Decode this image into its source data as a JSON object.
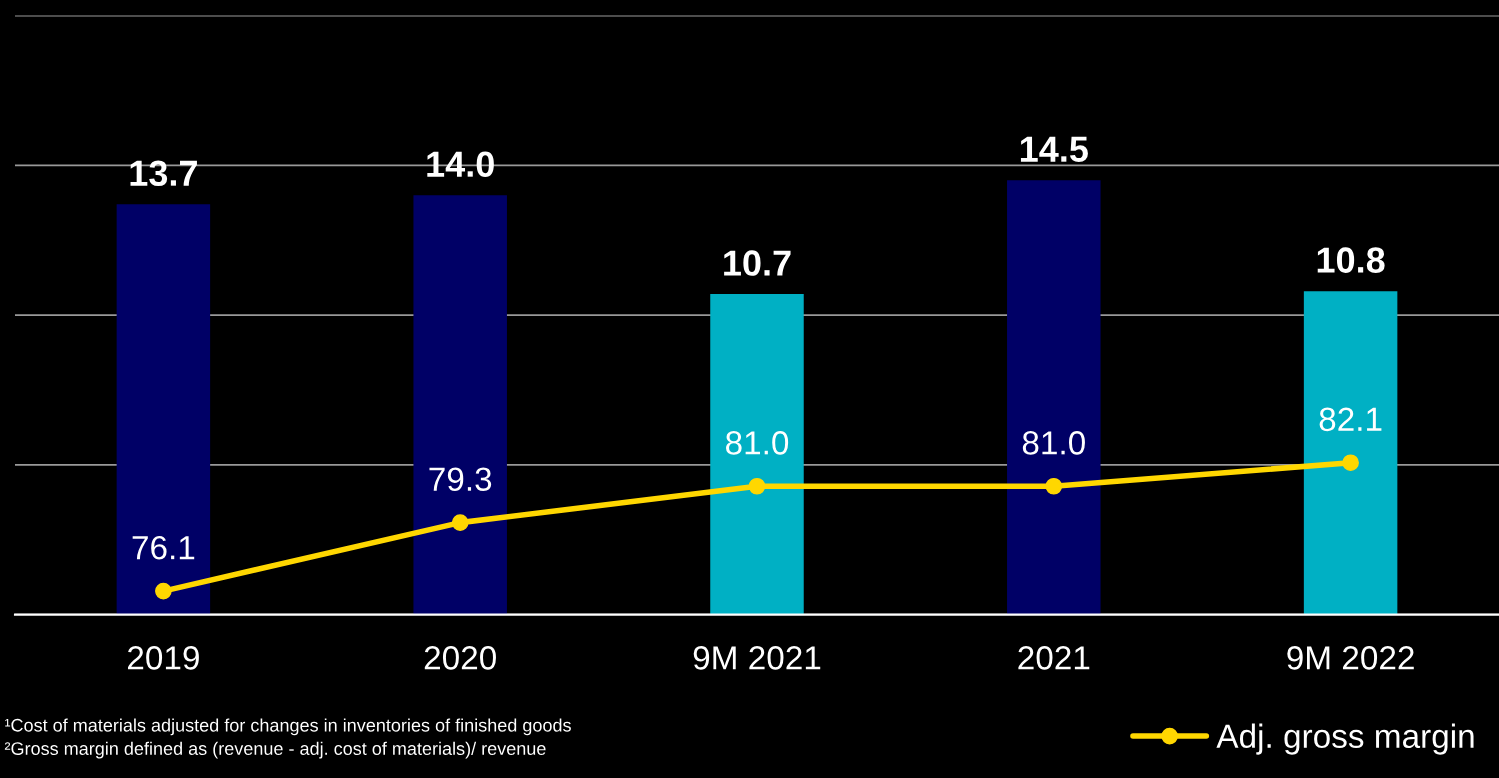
{
  "chart_data": {
    "type": "bar",
    "categories": [
      "2019",
      "2020",
      "9M 2021",
      "2021",
      "9M 2022"
    ],
    "series": [
      {
        "values": [
          13.7,
          14.0,
          10.7,
          14.5,
          10.8
        ],
        "value_labels": [
          "13.7",
          "14.0",
          "10.7",
          "14.5",
          "10.8"
        ],
        "colors": [
          "#000066",
          "#000066",
          "#00b0c4",
          "#000066",
          "#00b0c4"
        ]
      },
      {
        "type": "line",
        "name": "Adj. gross margin",
        "color": "#ffd700",
        "axis": "y2",
        "values": [
          76.1,
          79.3,
          81.0,
          81.0,
          82.1
        ],
        "value_labels": [
          "76.1",
          "79.3",
          "81.0",
          "81.0",
          "82.1"
        ]
      }
    ],
    "ylim": [
      0,
      20
    ],
    "yticks": [
      {
        "value": 0,
        "label": null
      },
      {
        "value": 5,
        "label": null
      },
      {
        "value": 10,
        "label": null
      },
      {
        "value": 15,
        "label": null
      },
      {
        "value": 20,
        "label": null
      }
    ],
    "y2lim": [
      75,
      103
    ],
    "grid": "y",
    "tick_labels": "x",
    "marker": "circle",
    "line_style": "solid",
    "legend": "bottom right",
    "annotations": [
      "¹Cost of materials adjusted for changes in inventories of finished goods",
      "²Gross margin defined as (revenue - adj. cost of materials)/ revenue"
    ]
  }
}
